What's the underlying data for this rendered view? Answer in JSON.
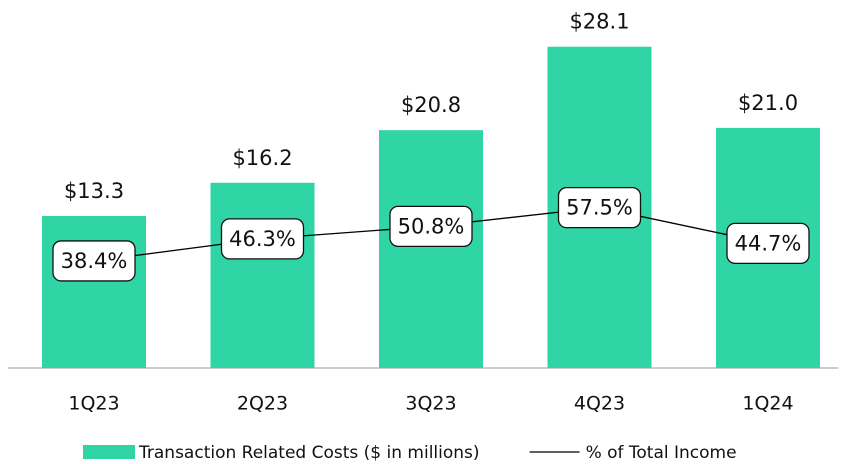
{
  "chart_data": {
    "type": "bar",
    "categories": [
      "1Q23",
      "2Q23",
      "3Q23",
      "4Q23",
      "1Q24"
    ],
    "series": [
      {
        "name": "Transaction Related Costs ($ in millions)",
        "type": "bar",
        "color": "#2fd5a5",
        "values": [
          13.3,
          16.2,
          20.8,
          28.1,
          21.0
        ],
        "value_labels": [
          "$13.3",
          "$16.2",
          "$20.8",
          "$28.1",
          "$21.0"
        ]
      },
      {
        "name": "% of Total Income",
        "type": "line",
        "axis": "y2",
        "color": "#000000",
        "values": [
          38.4,
          46.3,
          50.8,
          57.5,
          44.7
        ],
        "value_labels": [
          "38.4%",
          "46.3%",
          "50.8%",
          "57.5%",
          "44.7%"
        ]
      }
    ],
    "ylim": [
      0,
      30
    ],
    "y2lim": [
      0,
      123
    ],
    "legend": "bottom"
  }
}
